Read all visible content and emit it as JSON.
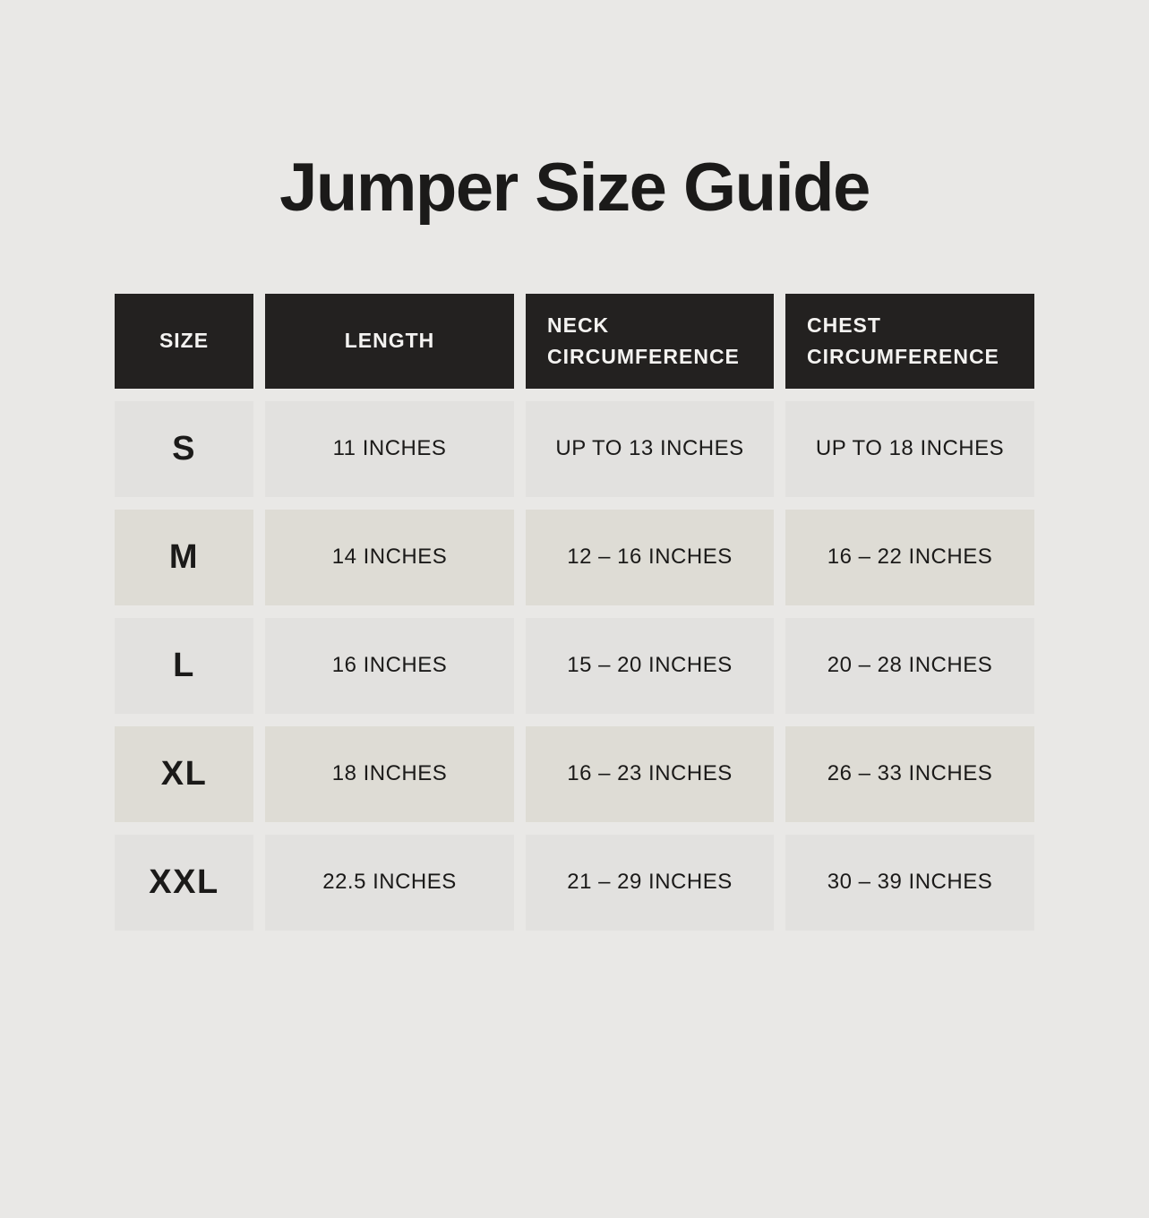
{
  "title": "Jumper Size Guide",
  "chart_data": {
    "type": "table",
    "title": "Jumper Size Guide",
    "columns": [
      "SIZE",
      "LENGTH",
      "NECK CIRCUMFERENCE",
      "CHEST CIRCUMFERENCE"
    ],
    "rows": [
      [
        "S",
        "11 INCHES",
        "UP TO 13 INCHES",
        "UP TO 18 INCHES"
      ],
      [
        "M",
        "14 INCHES",
        "12 – 16 INCHES",
        "16 – 22 INCHES"
      ],
      [
        "L",
        "16 INCHES",
        "15 – 20 INCHES",
        "20 – 28 INCHES"
      ],
      [
        "XL",
        "18 INCHES",
        "16 – 23 INCHES",
        "26 – 33 INCHES"
      ],
      [
        "XXL",
        "22.5 INCHES",
        "21 – 29 INCHES",
        "30 – 39 INCHES"
      ]
    ],
    "units": "inches",
    "layout": {
      "header_style": "dark-on-light",
      "alternating_row_shading": true,
      "grid": "separated-cells"
    }
  },
  "colors": {
    "page-bg": "#e9e8e6",
    "cell-bg": "#e2e1df",
    "cell-alt-bg": "#dedcd5",
    "header-bg": "#232120",
    "header-text": "#f4f3f1",
    "ink": "#1b1a19"
  }
}
